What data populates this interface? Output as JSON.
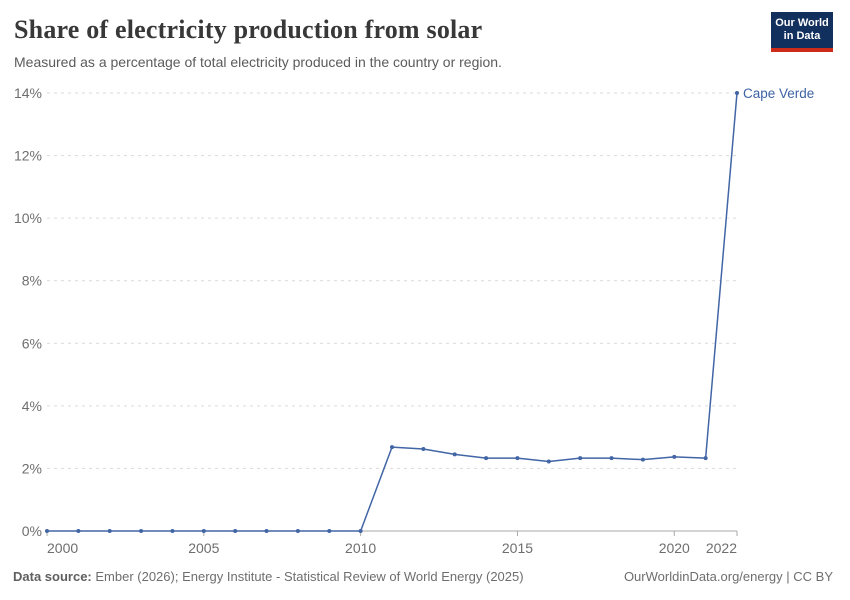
{
  "header": {
    "title": "Share of electricity production from solar",
    "subtitle": "Measured as a percentage of total electricity produced in the country or region."
  },
  "logo": {
    "line1": "Our World",
    "line2": "in Data",
    "bg_color": "#12305d",
    "accent_color": "#cf2b1a"
  },
  "chart_data": {
    "type": "line",
    "entity": "Cape Verde",
    "x": [
      2000,
      2001,
      2002,
      2003,
      2004,
      2005,
      2006,
      2007,
      2008,
      2009,
      2010,
      2011,
      2012,
      2013,
      2014,
      2015,
      2016,
      2017,
      2018,
      2019,
      2020,
      2021,
      2022
    ],
    "values": [
      0,
      0,
      0,
      0,
      0,
      0,
      0,
      0,
      0,
      0,
      0,
      2.68,
      2.62,
      2.45,
      2.33,
      2.33,
      2.22,
      2.33,
      2.33,
      2.28,
      2.37,
      2.33,
      14.0
    ],
    "xlim": [
      2000,
      2022
    ],
    "ylim": [
      0,
      14
    ],
    "x_ticks": [
      {
        "value": 2000,
        "label": "2000",
        "anchor": "start"
      },
      {
        "value": 2005,
        "label": "2005",
        "anchor": "middle"
      },
      {
        "value": 2010,
        "label": "2010",
        "anchor": "middle"
      },
      {
        "value": 2015,
        "label": "2015",
        "anchor": "middle"
      },
      {
        "value": 2020,
        "label": "2020",
        "anchor": "middle"
      },
      {
        "value": 2022,
        "label": "2022",
        "anchor": "end"
      }
    ],
    "y_ticks": [
      {
        "value": 0,
        "label": "0%"
      },
      {
        "value": 2,
        "label": "2%"
      },
      {
        "value": 4,
        "label": "4%"
      },
      {
        "value": 6,
        "label": "6%"
      },
      {
        "value": 8,
        "label": "8%"
      },
      {
        "value": 10,
        "label": "10%"
      },
      {
        "value": 12,
        "label": "12%"
      },
      {
        "value": 14,
        "label": "14%"
      }
    ],
    "grid": true,
    "legend_position": "end-of-line",
    "line_color": "#4165a5",
    "label_color": "#3d62a3",
    "grid_color": "#dadada",
    "axis_color": "#a8a8a8",
    "tick_text_color": "#6e6e6e"
  },
  "footer": {
    "source_label": "Data source:",
    "source_text": " Ember (2026); Energy Institute - Statistical Review of World Energy (2025)",
    "license": "OurWorldinData.org/energy | CC BY"
  }
}
